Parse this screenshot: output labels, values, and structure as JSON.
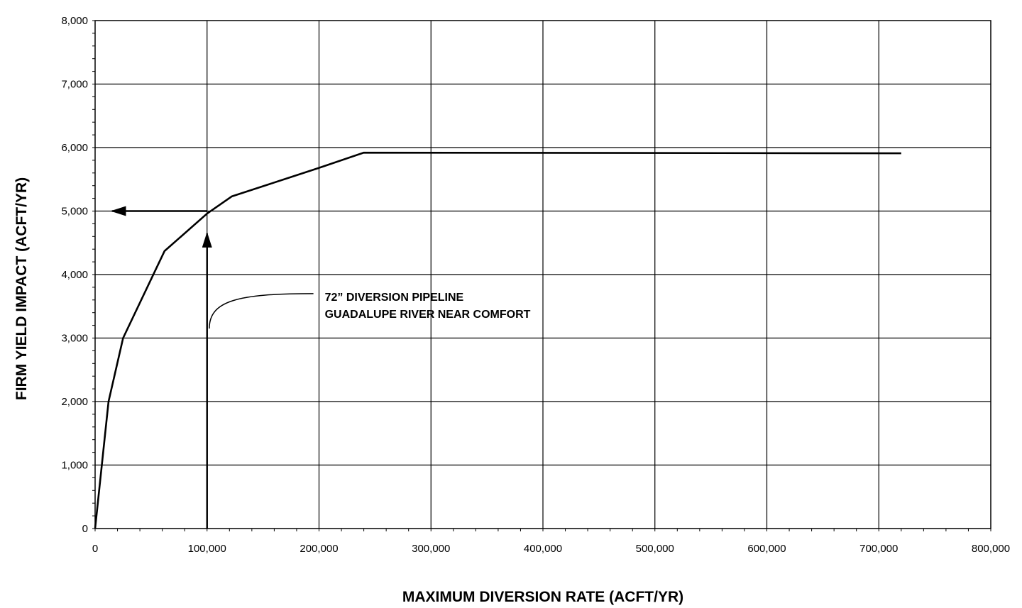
{
  "chart_data": {
    "type": "line",
    "title": "",
    "xlabel": "MAXIMUM DIVERSION RATE (ACFT/YR)",
    "ylabel": "FIRM YIELD IMPACT (ACFT/YR)",
    "xlim": [
      0,
      800000
    ],
    "ylim": [
      0,
      8000
    ],
    "x_ticks": [
      0,
      100000,
      200000,
      300000,
      400000,
      500000,
      600000,
      700000,
      800000
    ],
    "x_tick_labels": [
      "0",
      "100,000",
      "200,000",
      "300,000",
      "400,000",
      "500,000",
      "600,000",
      "700,000",
      "800,000"
    ],
    "y_ticks": [
      0,
      1000,
      2000,
      3000,
      4000,
      5000,
      6000,
      7000,
      8000
    ],
    "y_tick_labels": [
      "0",
      "1,000",
      "2,000",
      "3,000",
      "4,000",
      "5,000",
      "6,000",
      "7,000",
      "8,000"
    ],
    "grid": true,
    "legend": "none",
    "line_color": "#000000",
    "series": [
      {
        "x": [
          0,
          12000,
          25000,
          62000,
          100000,
          122000,
          200000,
          240000,
          720000
        ],
        "y": [
          0,
          2000,
          3000,
          4370,
          4960,
          5230,
          5680,
          5920,
          5910
        ]
      }
    ],
    "annotations": [
      {
        "lines": [
          "72” DIVERSION PIPELINE",
          "GUADALUPE RIVER NEAR COMFORT"
        ],
        "anchor": {
          "x": 102000,
          "y": 3150
        },
        "target": {
          "x": 195000,
          "y": 3700
        }
      }
    ],
    "arrows": [
      {
        "from": {
          "x": 100000,
          "y": 0
        },
        "to": {
          "x": 100000,
          "y": 4650
        }
      },
      {
        "from": {
          "x": 100000,
          "y": 5000
        },
        "to": {
          "x": 15000,
          "y": 5000
        }
      }
    ]
  }
}
